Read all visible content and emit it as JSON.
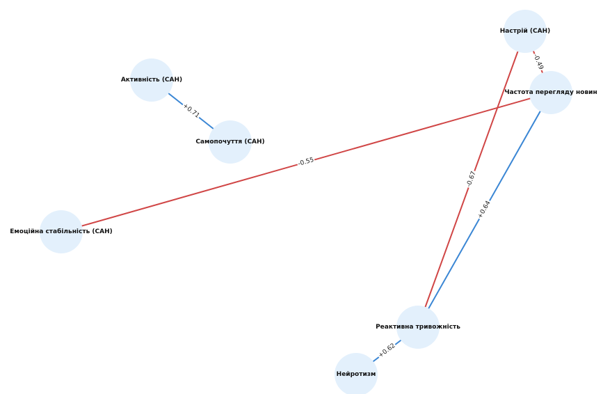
{
  "graph": {
    "nodes": [
      {
        "id": "nastrii",
        "label": "Настрій (САН)"
      },
      {
        "id": "aktyvnist",
        "label": "Активність (САН)"
      },
      {
        "id": "chastota",
        "label": "Частота перегляду новин"
      },
      {
        "id": "samopochuttia",
        "label": "Самопочуття (САН)"
      },
      {
        "id": "emotsiina",
        "label": "Емоційна стабільність (САН)"
      },
      {
        "id": "reaktyvna",
        "label": "Реактивна тривожність"
      },
      {
        "id": "neirotyzm",
        "label": "Нейротизм"
      }
    ],
    "edges": [
      {
        "source": "aktyvnist",
        "target": "samopochuttia",
        "weight": "+0.71",
        "color": "#3a86d4"
      },
      {
        "source": "emotsiina",
        "target": "chastota",
        "weight": "-0.55",
        "color": "#d04545"
      },
      {
        "source": "nastrii",
        "target": "chastota",
        "weight": "-0.49",
        "color": "#d04545"
      },
      {
        "source": "nastrii",
        "target": "reaktyvna",
        "weight": "-0.67",
        "color": "#d04545"
      },
      {
        "source": "chastota",
        "target": "reaktyvna",
        "weight": "+0.64",
        "color": "#3a86d4"
      },
      {
        "source": "reaktyvna",
        "target": "neirotyzm",
        "weight": "+0.62",
        "color": "#3a86d4"
      }
    ],
    "positive_color": "#3a86d4",
    "negative_color": "#d04545",
    "node_color": "#e3f0fc"
  }
}
